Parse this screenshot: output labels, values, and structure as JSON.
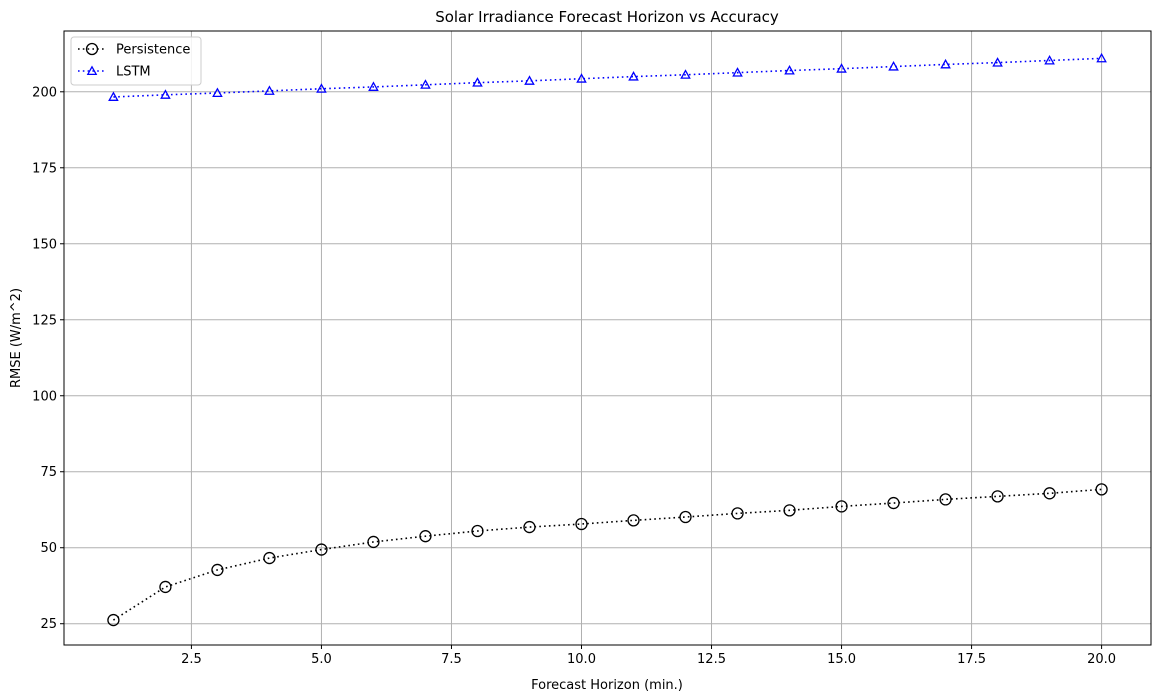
{
  "chart_data": {
    "type": "line",
    "title": "Solar Irradiance Forecast Horizon vs Accuracy",
    "xlabel": "Forecast Horizon (min.)",
    "ylabel": "RMSE (W/m^2)",
    "xlim": [
      0.05,
      20.95
    ],
    "ylim": [
      18,
      220
    ],
    "xticks": [
      2.5,
      5.0,
      7.5,
      10.0,
      12.5,
      15.0,
      17.5,
      20.0
    ],
    "xtick_labels": [
      "2.5",
      "5.0",
      "7.5",
      "10.0",
      "12.5",
      "15.0",
      "17.5",
      "20.0"
    ],
    "yticks": [
      25,
      50,
      75,
      100,
      125,
      150,
      175,
      200
    ],
    "ytick_labels": [
      "25",
      "50",
      "75",
      "100",
      "125",
      "150",
      "175",
      "200"
    ],
    "grid": true,
    "legend_position": "top-left",
    "x": [
      1,
      2,
      3,
      4,
      5,
      6,
      7,
      8,
      9,
      10,
      11,
      12,
      13,
      14,
      15,
      16,
      17,
      18,
      19,
      20
    ],
    "series": [
      {
        "name": "Persistence",
        "color": "#000000",
        "marker": "circle",
        "linestyle": "dotted",
        "values": [
          26.2,
          37.1,
          42.7,
          46.6,
          49.4,
          51.9,
          53.8,
          55.5,
          56.8,
          57.8,
          59.0,
          60.1,
          61.3,
          62.3,
          63.6,
          64.7,
          65.9,
          66.9,
          67.9,
          69.2
        ]
      },
      {
        "name": "LSTM",
        "color": "#0000ff",
        "marker": "triangle",
        "linestyle": "dotted",
        "values": [
          198.3,
          199.0,
          199.6,
          200.3,
          201.0,
          201.6,
          202.3,
          203.0,
          203.6,
          204.3,
          205.0,
          205.6,
          206.3,
          207.0,
          207.6,
          208.3,
          209.0,
          209.6,
          210.3,
          211.0
        ]
      }
    ]
  }
}
